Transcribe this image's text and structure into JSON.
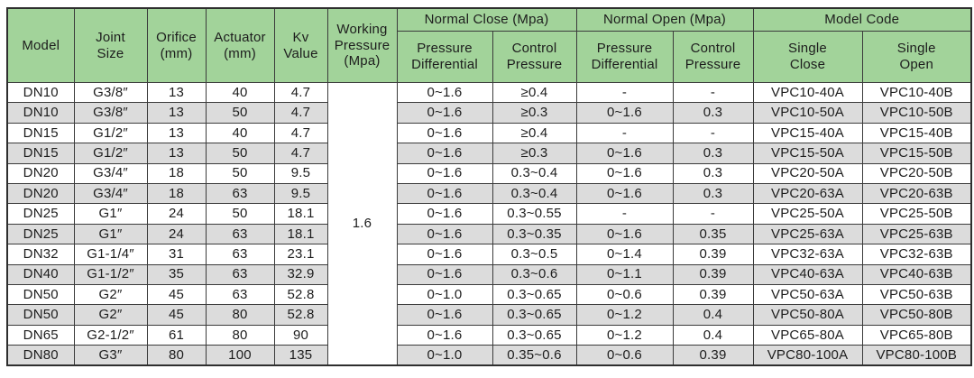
{
  "table": {
    "header": {
      "model": "Model",
      "joint_size": "Joint\nSize",
      "orifice": "Orifice\n(mm)",
      "actuator": "Actuator\n(mm)",
      "kv_value": "Kv\nValue",
      "working_pressure": "Working\nPressure\n(Mpa)",
      "normal_close_group": "Normal Close (Mpa)",
      "normal_open_group": "Normal Open (Mpa)",
      "model_code_group": "Model Code",
      "nc_pressure_differential": "Pressure\nDifferential",
      "nc_control_pressure": "Control\nPressure",
      "no_pressure_differential": "Pressure\nDifferential",
      "no_control_pressure": "Control\nPressure",
      "single_close": "Single\nClose",
      "single_open": "Single\nOpen"
    },
    "working_pressure_value": "1.6",
    "col_keys": [
      "model",
      "joint-size",
      "orifice",
      "actuator",
      "kv-value",
      "nc-pressure-differential",
      "nc-control-pressure",
      "no-pressure-differential",
      "no-control-pressure",
      "single-close",
      "single-open"
    ],
    "rows": [
      [
        "DN10",
        "G3/8″",
        "13",
        "40",
        "4.7",
        "0~1.6",
        "≥0.4",
        "-",
        "-",
        "VPC10-40A",
        "VPC10-40B"
      ],
      [
        "DN10",
        "G3/8″",
        "13",
        "50",
        "4.7",
        "0~1.6",
        "≥0.3",
        "0~1.6",
        "0.3",
        "VPC10-50A",
        "VPC10-50B"
      ],
      [
        "DN15",
        "G1/2″",
        "13",
        "40",
        "4.7",
        "0~1.6",
        "≥0.4",
        "-",
        "-",
        "VPC15-40A",
        "VPC15-40B"
      ],
      [
        "DN15",
        "G1/2″",
        "13",
        "50",
        "4.7",
        "0~1.6",
        "≥0.3",
        "0~1.6",
        "0.3",
        "VPC15-50A",
        "VPC15-50B"
      ],
      [
        "DN20",
        "G3/4″",
        "18",
        "50",
        "9.5",
        "0~1.6",
        "0.3~0.4",
        "0~1.6",
        "0.3",
        "VPC20-50A",
        "VPC20-50B"
      ],
      [
        "DN20",
        "G3/4″",
        "18",
        "63",
        "9.5",
        "0~1.6",
        "0.3~0.4",
        "0~1.6",
        "0.3",
        "VPC20-63A",
        "VPC20-63B"
      ],
      [
        "DN25",
        "G1″",
        "24",
        "50",
        "18.1",
        "0~1.6",
        "0.3~0.55",
        "-",
        "-",
        "VPC25-50A",
        "VPC25-50B"
      ],
      [
        "DN25",
        "G1″",
        "24",
        "63",
        "18.1",
        "0~1.6",
        "0.3~0.35",
        "0~1.6",
        "0.35",
        "VPC25-63A",
        "VPC25-63B"
      ],
      [
        "DN32",
        "G1-1/4″",
        "31",
        "63",
        "23.1",
        "0~1.6",
        "0.3~0.5",
        "0~1.4",
        "0.39",
        "VPC32-63A",
        "VPC32-63B"
      ],
      [
        "DN40",
        "G1-1/2″",
        "35",
        "63",
        "32.9",
        "0~1.6",
        "0.3~0.6",
        "0~1.1",
        "0.39",
        "VPC40-63A",
        "VPC40-63B"
      ],
      [
        "DN50",
        "G2″",
        "45",
        "63",
        "52.8",
        "0~1.0",
        "0.3~0.65",
        "0~0.6",
        "0.39",
        "VPC50-63A",
        "VPC50-63B"
      ],
      [
        "DN50",
        "G2″",
        "45",
        "80",
        "52.8",
        "0~1.6",
        "0.3~0.65",
        "0~1.2",
        "0.4",
        "VPC50-80A",
        "VPC50-80B"
      ],
      [
        "DN65",
        "G2-1/2″",
        "61",
        "80",
        "90",
        "0~1.6",
        "0.3~0.65",
        "0~1.2",
        "0.4",
        "VPC65-80A",
        "VPC65-80B"
      ],
      [
        "DN80",
        "G3″",
        "80",
        "100",
        "135",
        "0~1.0",
        "0.35~0.6",
        "0~0.6",
        "0.39",
        "VPC80-100A",
        "VPC80-100B"
      ]
    ]
  },
  "colors": {
    "header_green": "#a2d39a",
    "stripe_gray": "#dcdcdc",
    "border": "#3b3b3b",
    "border_dark": "#2e2e2e"
  }
}
